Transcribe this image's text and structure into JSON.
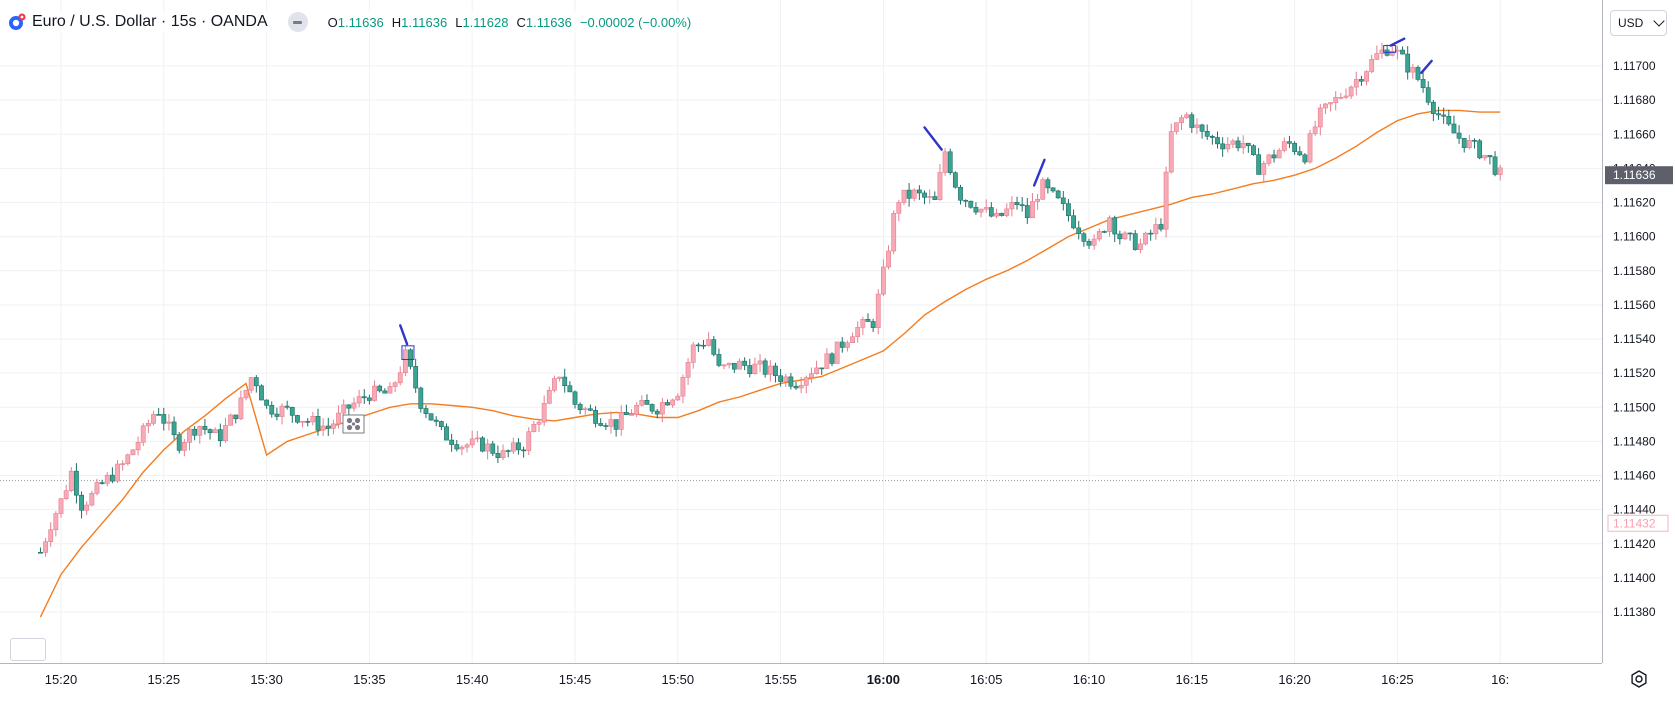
{
  "legend": {
    "symbol": "Euro / U.S. Dollar · 15s · OANDA",
    "ohlc": [
      {
        "k": "O",
        "v": "1.11636"
      },
      {
        "k": "H",
        "v": "1.11636"
      },
      {
        "k": "L",
        "v": "1.11628"
      },
      {
        "k": "C",
        "v": "1.11636"
      }
    ],
    "change": "−0.00002 (−0.00%)",
    "logo_icon": "oanda-logo-icon",
    "visibility_icon": "hide-icon"
  },
  "price_axis": {
    "currency": "USD",
    "current_price": "1.11636",
    "ghost_price": "1.11432"
  },
  "settings_icon": "gear-icon",
  "colors": {
    "up": "#f7a9b6",
    "up_border": "#e57f8f",
    "down": "#3aa392",
    "down_border": "#1f6f64",
    "ma": "#f57c1f",
    "drawing": "#2f34c9",
    "grid": "#eef1f5"
  },
  "chart_data": {
    "type": "candlestick",
    "interval": "15s",
    "y_ticks": [
      "1.11700",
      "1.11680",
      "1.11660",
      "1.11640",
      "1.11620",
      "1.11600",
      "1.11580",
      "1.11560",
      "1.11540",
      "1.11520",
      "1.11500",
      "1.11480",
      "1.11460",
      "1.11440",
      "1.11420",
      "1.11400",
      "1.11380"
    ],
    "ylim": [
      1.11372,
      1.11718
    ],
    "x_ticks": [
      {
        "label": "15:20",
        "bold": false
      },
      {
        "label": "15:25",
        "bold": false
      },
      {
        "label": "15:30",
        "bold": false
      },
      {
        "label": "15:35",
        "bold": false
      },
      {
        "label": "15:40",
        "bold": false
      },
      {
        "label": "15:45",
        "bold": false
      },
      {
        "label": "15:50",
        "bold": false
      },
      {
        "label": "15:55",
        "bold": false
      },
      {
        "label": "16:00",
        "bold": true
      },
      {
        "label": "16:05",
        "bold": false
      },
      {
        "label": "16:10",
        "bold": false
      },
      {
        "label": "16:15",
        "bold": false
      },
      {
        "label": "16:20",
        "bold": false
      },
      {
        "label": "16:25",
        "bold": false
      },
      {
        "label": "16:",
        "bold": false
      }
    ],
    "dashed_level": 1.11457,
    "close_path": [
      [
        "15:19:00",
        1.11415
      ],
      [
        "15:19:30",
        1.11432
      ],
      [
        "15:20:00",
        1.11445
      ],
      [
        "15:20:30",
        1.11462
      ],
      [
        "15:21:00",
        1.11443
      ],
      [
        "15:21:30",
        1.11448
      ],
      [
        "15:22:00",
        1.11455
      ],
      [
        "15:23:00",
        1.11466
      ],
      [
        "15:24:00",
        1.11485
      ],
      [
        "15:24:40",
        1.115
      ],
      [
        "15:25:40",
        1.11478
      ],
      [
        "15:26:40",
        1.1149
      ],
      [
        "15:27:40",
        1.11482
      ],
      [
        "15:28:40",
        1.115
      ],
      [
        "15:29:20",
        1.1152
      ],
      [
        "15:30:00",
        1.115
      ],
      [
        "15:31:00",
        1.11498
      ],
      [
        "15:32:00",
        1.11492
      ],
      [
        "15:33:00",
        1.11488
      ],
      [
        "15:34:00",
        1.115
      ],
      [
        "15:35:00",
        1.11508
      ],
      [
        "15:36:00",
        1.11508
      ],
      [
        "15:36:45",
        1.1153
      ],
      [
        "15:37:30",
        1.11503
      ],
      [
        "15:38:30",
        1.11485
      ],
      [
        "15:39:30",
        1.11478
      ],
      [
        "15:40:30",
        1.11478
      ],
      [
        "15:41:30",
        1.11472
      ],
      [
        "15:42:30",
        1.11478
      ],
      [
        "15:43:30",
        1.115
      ],
      [
        "15:44:15",
        1.1152
      ],
      [
        "15:45:00",
        1.11502
      ],
      [
        "15:46:00",
        1.11495
      ],
      [
        "15:47:00",
        1.1149
      ],
      [
        "15:48:00",
        1.115
      ],
      [
        "15:49:00",
        1.115
      ],
      [
        "15:50:00",
        1.1151
      ],
      [
        "15:50:45",
        1.11535
      ],
      [
        "15:51:30",
        1.1154
      ],
      [
        "15:52:00",
        1.11522
      ],
      [
        "15:53:00",
        1.11525
      ],
      [
        "15:54:00",
        1.11523
      ],
      [
        "15:55:00",
        1.11518
      ],
      [
        "15:55:45",
        1.11515
      ],
      [
        "15:56:30",
        1.11522
      ],
      [
        "15:57:30",
        1.1153
      ],
      [
        "15:58:30",
        1.11545
      ],
      [
        "15:59:30",
        1.1155
      ],
      [
        "16:00:00",
        1.11578
      ],
      [
        "16:00:40",
        1.11622
      ],
      [
        "16:01:30",
        1.11625
      ],
      [
        "16:02:30",
        1.1162
      ],
      [
        "16:03:00",
        1.1165
      ],
      [
        "16:03:40",
        1.11625
      ],
      [
        "16:04:30",
        1.11618
      ],
      [
        "16:05:30",
        1.1161
      ],
      [
        "16:06:30",
        1.1162
      ],
      [
        "16:07:00",
        1.11612
      ],
      [
        "16:07:40",
        1.1163
      ],
      [
        "16:08:30",
        1.1162
      ],
      [
        "16:09:30",
        1.11605
      ],
      [
        "16:10:15",
        1.11595
      ],
      [
        "16:11:00",
        1.11612
      ],
      [
        "16:11:30",
        1.116
      ],
      [
        "16:12:30",
        1.11595
      ],
      [
        "16:13:30",
        1.11608
      ],
      [
        "16:14:00",
        1.1166
      ],
      [
        "16:14:40",
        1.11672
      ],
      [
        "16:15:30",
        1.1166
      ],
      [
        "16:16:30",
        1.11655
      ],
      [
        "16:17:30",
        1.11655
      ],
      [
        "16:18:10",
        1.1164
      ],
      [
        "16:19:00",
        1.11648
      ],
      [
        "16:19:40",
        1.11655
      ],
      [
        "16:20:30",
        1.11648
      ],
      [
        "16:21:10",
        1.1167
      ],
      [
        "16:22:00",
        1.1168
      ],
      [
        "16:23:00",
        1.11692
      ],
      [
        "16:24:00",
        1.11706
      ],
      [
        "16:24:40",
        1.11712
      ],
      [
        "16:25:30",
        1.117
      ],
      [
        "16:26:10",
        1.1169
      ],
      [
        "16:26:40",
        1.11678
      ],
      [
        "16:27:20",
        1.11665
      ],
      [
        "16:28:00",
        1.11658
      ],
      [
        "16:29:00",
        1.1165
      ],
      [
        "16:29:30",
        1.11645
      ],
      [
        "16:30:00",
        1.11636
      ]
    ],
    "moving_average": [
      [
        "15:19:00",
        1.11377
      ],
      [
        "15:20:00",
        1.11402
      ],
      [
        "15:21:00",
        1.11418
      ],
      [
        "15:22:00",
        1.11432
      ],
      [
        "15:23:00",
        1.11446
      ],
      [
        "15:24:00",
        1.11462
      ],
      [
        "15:25:00",
        1.11475
      ],
      [
        "15:26:00",
        1.11486
      ],
      [
        "15:27:00",
        1.11495
      ],
      [
        "15:28:00",
        1.11505
      ],
      [
        "15:29:00",
        1.11514
      ],
      [
        "15:30:00",
        1.11472
      ],
      [
        "15:31:00",
        1.1148
      ],
      [
        "15:32:00",
        1.11484
      ],
      [
        "15:33:00",
        1.11488
      ],
      [
        "15:34:00",
        1.11492
      ],
      [
        "15:35:00",
        1.11496
      ],
      [
        "15:36:00",
        1.115
      ],
      [
        "15:37:00",
        1.11502
      ],
      [
        "15:38:00",
        1.11502
      ],
      [
        "15:39:00",
        1.11501
      ],
      [
        "15:40:00",
        1.115
      ],
      [
        "15:41:00",
        1.11498
      ],
      [
        "15:42:00",
        1.11495
      ],
      [
        "15:43:00",
        1.11493
      ],
      [
        "15:44:00",
        1.11492
      ],
      [
        "15:45:00",
        1.11494
      ],
      [
        "15:46:00",
        1.11496
      ],
      [
        "15:47:00",
        1.11497
      ],
      [
        "15:48:00",
        1.11496
      ],
      [
        "15:49:00",
        1.11494
      ],
      [
        "15:50:00",
        1.11494
      ],
      [
        "15:51:00",
        1.11498
      ],
      [
        "15:52:00",
        1.11503
      ],
      [
        "15:53:00",
        1.11506
      ],
      [
        "15:54:00",
        1.1151
      ],
      [
        "15:55:00",
        1.11514
      ],
      [
        "15:56:00",
        1.11516
      ],
      [
        "15:57:00",
        1.11518
      ],
      [
        "15:58:00",
        1.11523
      ],
      [
        "15:59:00",
        1.11528
      ],
      [
        "16:00:00",
        1.11533
      ],
      [
        "16:01:00",
        1.11543
      ],
      [
        "16:02:00",
        1.11554
      ],
      [
        "16:03:00",
        1.11562
      ],
      [
        "16:04:00",
        1.11569
      ],
      [
        "16:05:00",
        1.11575
      ],
      [
        "16:06:00",
        1.1158
      ],
      [
        "16:07:00",
        1.11586
      ],
      [
        "16:08:00",
        1.11593
      ],
      [
        "16:09:00",
        1.116
      ],
      [
        "16:10:00",
        1.11605
      ],
      [
        "16:11:00",
        1.1161
      ],
      [
        "16:12:00",
        1.11613
      ],
      [
        "16:13:00",
        1.11616
      ],
      [
        "16:14:00",
        1.11619
      ],
      [
        "16:15:00",
        1.11623
      ],
      [
        "16:16:00",
        1.11625
      ],
      [
        "16:17:00",
        1.11628
      ],
      [
        "16:18:00",
        1.11631
      ],
      [
        "16:19:00",
        1.11633
      ],
      [
        "16:20:00",
        1.11636
      ],
      [
        "16:21:00",
        1.1164
      ],
      [
        "16:22:00",
        1.11646
      ],
      [
        "16:23:00",
        1.11653
      ],
      [
        "16:24:00",
        1.11661
      ],
      [
        "16:25:00",
        1.11668
      ],
      [
        "16:26:00",
        1.11672
      ],
      [
        "16:27:00",
        1.11674
      ],
      [
        "16:28:00",
        1.11674
      ],
      [
        "16:29:00",
        1.11673
      ],
      [
        "16:30:00",
        1.11673
      ]
    ],
    "drawings": [
      {
        "type": "pen-stroke",
        "points": [
          [
            "15:36:30",
            1.11548
          ],
          [
            "15:36:50",
            1.11537
          ]
        ]
      },
      {
        "type": "pen-stroke",
        "points": [
          [
            "16:02:00",
            1.11664
          ],
          [
            "16:02:50",
            1.11651
          ]
        ]
      },
      {
        "type": "pen-stroke",
        "points": [
          [
            "16:07:20",
            1.1163
          ],
          [
            "16:07:50",
            1.11645
          ]
        ]
      },
      {
        "type": "pen-stroke",
        "points": [
          [
            "16:24:40",
            1.11712
          ],
          [
            "16:25:20",
            1.11716
          ]
        ]
      },
      {
        "type": "pen-stroke",
        "points": [
          [
            "16:26:10",
            1.11696
          ],
          [
            "16:26:40",
            1.11703
          ]
        ]
      },
      {
        "type": "selection-box",
        "points": [
          [
            "15:36:35",
            1.11536
          ],
          [
            "15:37:10",
            1.11528
          ]
        ]
      },
      {
        "type": "selection-box",
        "points": [
          [
            "16:24:20",
            1.11712
          ],
          [
            "16:24:55",
            1.11708
          ]
        ]
      }
    ]
  }
}
